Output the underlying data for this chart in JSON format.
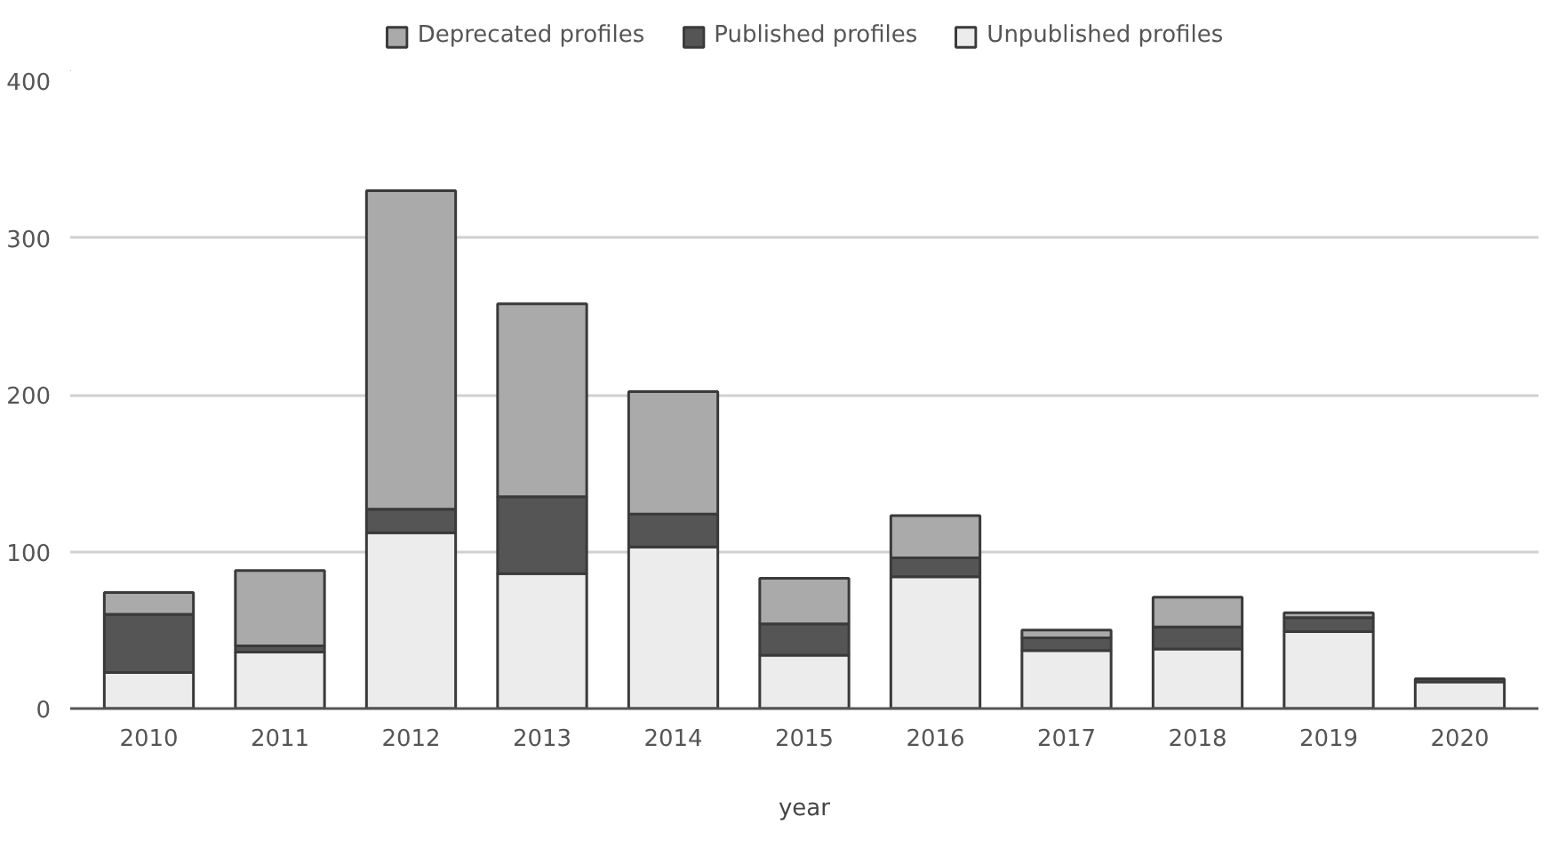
{
  "chart_data": {
    "type": "bar",
    "stacked": true,
    "xlabel": "year",
    "categories": [
      "2010",
      "2011",
      "2012",
      "2013",
      "2014",
      "2015",
      "2016",
      "2017",
      "2018",
      "2019",
      "2020"
    ],
    "series": [
      {
        "name": "Unpublished profiles",
        "color": "#ececec",
        "values": [
          23,
          36,
          112,
          86,
          103,
          34,
          84,
          37,
          38,
          49,
          17
        ]
      },
      {
        "name": "Published profiles",
        "color": "#555555",
        "values": [
          37,
          4,
          15,
          49,
          21,
          20,
          12,
          8,
          14,
          9,
          2
        ]
      },
      {
        "name": "Deprecated profiles",
        "color": "#aaaaaa",
        "values": [
          14,
          48,
          203,
          123,
          78,
          29,
          27,
          5,
          19,
          3,
          null
        ]
      }
    ],
    "ylim": [
      0,
      400
    ],
    "yticks": [
      0,
      100,
      200,
      300,
      400
    ],
    "grid": "y",
    "legend": "top"
  }
}
